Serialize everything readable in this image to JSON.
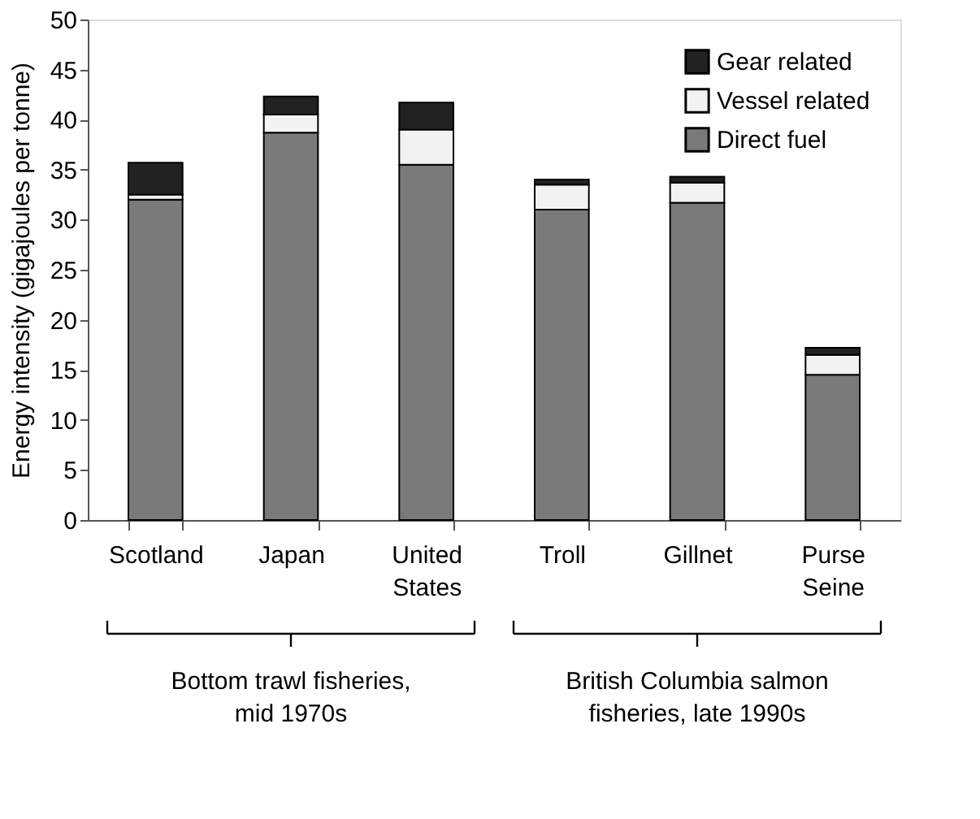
{
  "chart_data": {
    "type": "bar",
    "stacked": true,
    "ylabel": "Energy intensity (gigajoules per tonne)",
    "categories": [
      "Scotland",
      "Japan",
      "United States",
      "Troll",
      "Gillnet",
      "Purse Seine"
    ],
    "series": [
      {
        "name": "Direct fuel",
        "color": "#7a7a7a",
        "values": [
          32,
          38.7,
          35.5,
          31,
          31.7,
          14.5
        ]
      },
      {
        "name": "Vessel related",
        "color": "#f2f2f2",
        "values": [
          0.5,
          1.8,
          3.5,
          2.5,
          2.0,
          2.0
        ]
      },
      {
        "name": "Gear related",
        "color": "#222222",
        "values": [
          3.2,
          1.8,
          2.7,
          0.5,
          0.6,
          0.7
        ]
      }
    ],
    "ylim": [
      0,
      50
    ],
    "yticks": [
      0,
      5,
      10,
      15,
      20,
      25,
      30,
      35,
      40,
      45,
      50
    ],
    "grid": false,
    "legend": "top right",
    "annotations": [
      "Bottom trawl fisheries,\nmid 1970s",
      "British Columbia salmon\nfisheries, late 1990s"
    ]
  }
}
